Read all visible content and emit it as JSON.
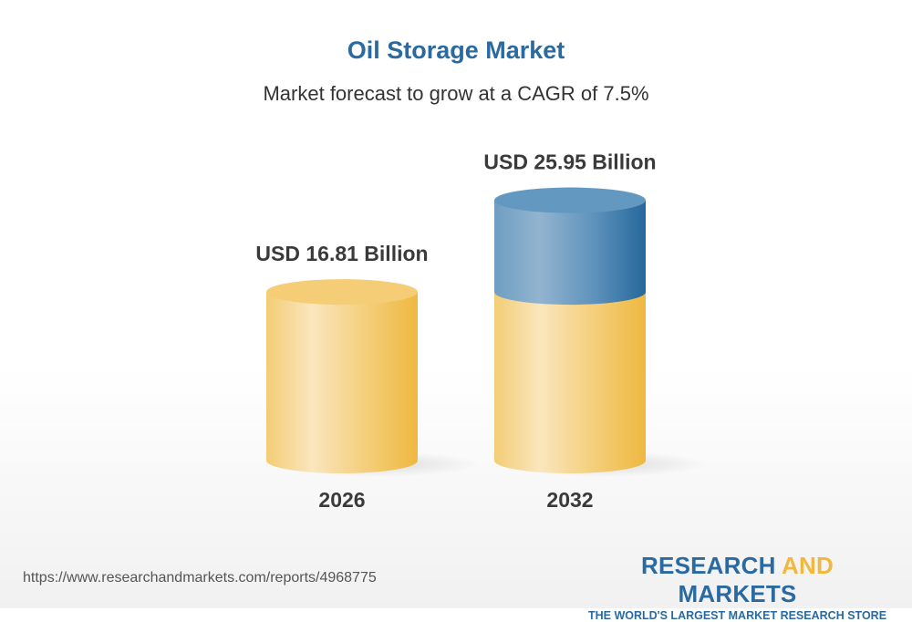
{
  "title": "Oil Storage Market",
  "subtitle": "Market forecast to grow at a CAGR of 7.5%",
  "chart_data": {
    "type": "bar",
    "style": "3d-cylinder",
    "categories": [
      "2026",
      "2032"
    ],
    "values": [
      16.81,
      25.95
    ],
    "data_labels": [
      "USD 16.81 Billion",
      "USD 25.95 Billion"
    ],
    "unit": "USD Billion",
    "colors": {
      "base": "#f2c35a",
      "growth": "#2a6aa0"
    }
  },
  "footer": {
    "url": "https://www.researchandmarkets.com/reports/4968775",
    "logo_part1": "RESEARCH ",
    "logo_part2": "AND",
    "logo_part3": " MARKETS",
    "tagline": "THE WORLD'S LARGEST MARKET RESEARCH STORE"
  }
}
